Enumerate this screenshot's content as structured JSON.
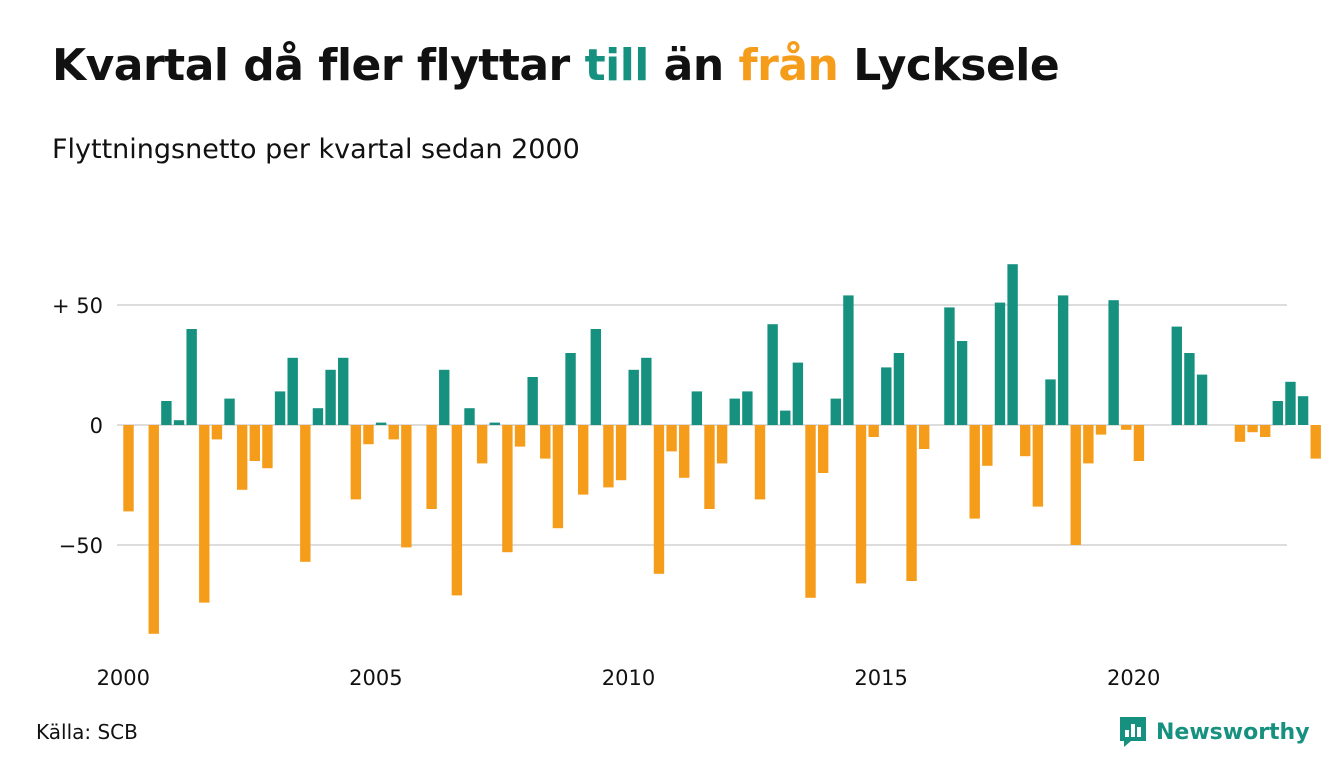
{
  "header": {
    "title_part1": "Kvartal då fler flyttar ",
    "title_to": "till",
    "title_part2": " än ",
    "title_from": "från",
    "title_part3": " Lycksele",
    "subtitle": "Flyttningsnetto per kvartal sedan 2000"
  },
  "footer": {
    "source": "Källa: SCB",
    "brand": "Newsworthy"
  },
  "colors": {
    "positive": "#17917f",
    "negative": "#f59c1a",
    "grid": "#dddddd",
    "text": "#111111"
  },
  "chart_data": {
    "type": "bar",
    "title": "Kvartal då fler flyttar till än från Lycksele",
    "subtitle": "Flyttningsnetto per kvartal sedan 2000",
    "xlabel": "",
    "ylabel": "",
    "x_ticks": [
      "2000",
      "2005",
      "2010",
      "2015",
      "2020"
    ],
    "y_ticks": [
      {
        "value": 50,
        "label": "+ 50"
      },
      {
        "value": 0,
        "label": "0"
      },
      {
        "value": -50,
        "label": "−50"
      }
    ],
    "ylim": [
      -90,
      70
    ],
    "grid": true,
    "categories": [
      "2000 Q1",
      "2000 Q2",
      "2000 Q3",
      "2000 Q4",
      "2001 Q1",
      "2001 Q2",
      "2001 Q3",
      "2001 Q4",
      "2002 Q1",
      "2002 Q2",
      "2002 Q3",
      "2002 Q4",
      "2003 Q1",
      "2003 Q2",
      "2003 Q3",
      "2003 Q4",
      "2004 Q1",
      "2004 Q2",
      "2004 Q3",
      "2004 Q4",
      "2005 Q1",
      "2005 Q2",
      "2005 Q3",
      "2005 Q4",
      "2006 Q1",
      "2006 Q2",
      "2006 Q3",
      "2006 Q4",
      "2007 Q1",
      "2007 Q2",
      "2007 Q3",
      "2007 Q4",
      "2008 Q1",
      "2008 Q2",
      "2008 Q3",
      "2008 Q4",
      "2009 Q1",
      "2009 Q2",
      "2009 Q3",
      "2009 Q4",
      "2010 Q1",
      "2010 Q2",
      "2010 Q3",
      "2010 Q4",
      "2011 Q1",
      "2011 Q2",
      "2011 Q3",
      "2011 Q4",
      "2012 Q1",
      "2012 Q2",
      "2012 Q3",
      "2012 Q4",
      "2013 Q1",
      "2013 Q2",
      "2013 Q3",
      "2013 Q4",
      "2014 Q1",
      "2014 Q2",
      "2014 Q3",
      "2014 Q4",
      "2015 Q1",
      "2015 Q2",
      "2015 Q3",
      "2015 Q4",
      "2016 Q1",
      "2016 Q2",
      "2016 Q3",
      "2016 Q4",
      "2017 Q1",
      "2017 Q2",
      "2017 Q3",
      "2017 Q4",
      "2018 Q1",
      "2018 Q2",
      "2018 Q3",
      "2018 Q4",
      "2019 Q1",
      "2019 Q2",
      "2019 Q3",
      "2019 Q4",
      "2020 Q1",
      "2020 Q2",
      "2020 Q3",
      "2020 Q4",
      "2021 Q1",
      "2021 Q2",
      "2021 Q3",
      "2021 Q4",
      "2022 Q1",
      "2022 Q2",
      "2022 Q3",
      "2022 Q4",
      "2023 Q1",
      "2023 Q2",
      "2023 Q3",
      "2023 Q4"
    ],
    "values": [
      -36,
      0,
      -87,
      10,
      2,
      40,
      -74,
      -6,
      11,
      -27,
      -15,
      -18,
      14,
      28,
      -57,
      7,
      23,
      28,
      -31,
      -8,
      1,
      -6,
      -51,
      0,
      -35,
      23,
      -71,
      7,
      -16,
      1,
      -53,
      -9,
      20,
      -14,
      -43,
      30,
      -29,
      40,
      -26,
      -23,
      23,
      28,
      -62,
      -11,
      -22,
      14,
      -35,
      -16,
      11,
      14,
      -31,
      42,
      6,
      26,
      -72,
      -20,
      11,
      54,
      -66,
      -5,
      24,
      30,
      -65,
      -10,
      0,
      49,
      35,
      -39,
      -17,
      51,
      67,
      -13,
      -34,
      19,
      54,
      -50,
      -16,
      -4,
      52,
      -2,
      -15,
      0,
      0,
      41,
      30,
      21,
      0,
      0,
      -7,
      -3,
      -5,
      10,
      18,
      12,
      -14,
      0
    ]
  }
}
